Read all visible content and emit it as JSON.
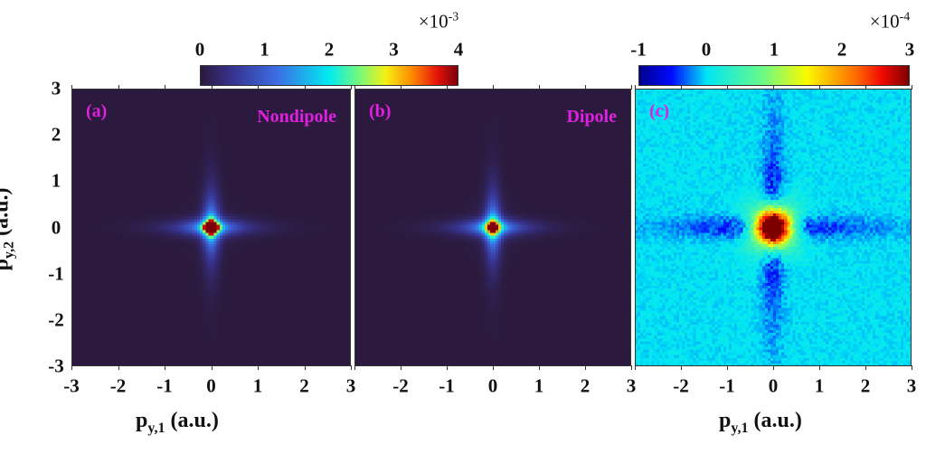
{
  "chart_data": [
    {
      "type": "heatmap",
      "panel_label": "(a)",
      "annotation": "Nondipole",
      "xlabel": "p",
      "xlabel_sub": "y,1",
      "xlabel_unit": " (a.u.)",
      "ylabel": "p",
      "ylabel_sub": "y,2",
      "ylabel_unit": " (a.u.)",
      "xlim": [
        -3,
        3
      ],
      "ylim": [
        -3,
        3
      ],
      "xticks": [
        "-3",
        "-2",
        "-1",
        "0",
        "1",
        "2",
        "3"
      ],
      "yticks": [
        "3",
        "2",
        "1",
        "0",
        "-1",
        "-2",
        "-3"
      ],
      "colormap": "jet-dark",
      "clim": [
        0,
        0.004
      ],
      "peak_center": 0.004,
      "description_colors": {
        "background": "#2b1a3d"
      }
    },
    {
      "type": "heatmap",
      "panel_label": "(b)",
      "annotation": "Dipole",
      "xlim": [
        -3,
        3
      ],
      "ylim": [
        -3,
        3
      ],
      "xticks": [
        "-2",
        "-1",
        "0",
        "1",
        "2",
        "3"
      ],
      "colormap": "jet-dark",
      "clim": [
        0,
        0.004
      ],
      "peak_center": 0.004
    },
    {
      "type": "heatmap",
      "panel_label": "(c)",
      "annotation": "",
      "xlabel": "p",
      "xlabel_sub": "y,1",
      "xlabel_unit": " (a.u.)",
      "xlim": [
        -3,
        3
      ],
      "ylim": [
        -3,
        3
      ],
      "xticks": [
        "-2",
        "-1",
        "0",
        "1",
        "2",
        "3"
      ],
      "colormap": "jet",
      "clim": [
        -0.0001,
        0.0003
      ]
    }
  ],
  "colorbars": [
    {
      "exponent": "×10",
      "power": "-3",
      "ticks": [
        "0",
        "1",
        "2",
        "3",
        "4"
      ],
      "range": [
        0,
        4
      ]
    },
    {
      "exponent": "×10",
      "power": "-4",
      "ticks": [
        "-1",
        "0",
        "1",
        "2",
        "3"
      ],
      "range": [
        -1,
        3
      ]
    }
  ]
}
